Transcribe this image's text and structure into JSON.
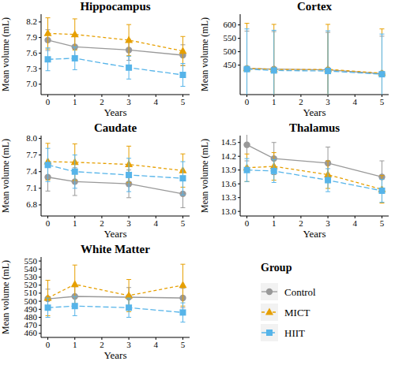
{
  "chart_data": [
    {
      "type": "line",
      "title": "Hippocampus",
      "x_label": "Years",
      "y_label": "Mean volume (mL)",
      "x": [
        0,
        1,
        3,
        5
      ],
      "xlim": [
        -0.25,
        5.25
      ],
      "xticks": [
        0,
        1,
        2,
        3,
        4,
        5
      ],
      "ylim": [
        6.8,
        8.35
      ],
      "yticks": [
        {
          "value": 7,
          "label": "7.0"
        },
        7.3,
        7.6,
        7.9,
        8.2
      ],
      "grid": false,
      "legend": "right",
      "legend_title": "Group",
      "series": [
        {
          "name": "Control",
          "color": "#999999",
          "marker": "circle",
          "line_style": "solid",
          "values": [
            7.85,
            7.72,
            7.66,
            7.56
          ],
          "errors": [
            0.2,
            0.2,
            0.2,
            0.2
          ]
        },
        {
          "name": "MICT",
          "color": "#E69F00",
          "marker": "triangle",
          "line_style": "dashed",
          "values": [
            7.98,
            7.96,
            7.85,
            7.64
          ],
          "errors": [
            0.3,
            0.3,
            0.3,
            0.28
          ]
        },
        {
          "name": "HIIT",
          "color": "#56B4E9",
          "marker": "square",
          "line_style": "longdash",
          "values": [
            7.48,
            7.5,
            7.32,
            7.18
          ],
          "errors": [
            0.22,
            0.22,
            0.22,
            0.22
          ]
        }
      ]
    },
    {
      "type": "line",
      "title": "Cortex",
      "x_label": "Years",
      "y_label": "Mean volume (mL)",
      "x": [
        0,
        1,
        3,
        5
      ],
      "xlim": [
        -0.25,
        5.25
      ],
      "xticks": [
        0,
        1,
        2,
        3,
        4,
        5
      ],
      "ylim": [
        340,
        640
      ],
      "yticks": [
        450,
        500,
        550,
        600
      ],
      "grid": false,
      "series": [
        {
          "name": "Control",
          "color": "#999999",
          "marker": "circle",
          "line_style": "solid",
          "values": [
            437,
            435,
            432,
            418
          ],
          "errors": [
            140,
            140,
            140,
            140
          ]
        },
        {
          "name": "MICT",
          "color": "#E69F00",
          "marker": "triangle",
          "line_style": "dashed",
          "values": [
            438,
            434,
            434,
            420
          ],
          "errors": [
            168,
            168,
            168,
            165
          ]
        },
        {
          "name": "HIIT",
          "color": "#56B4E9",
          "marker": "square",
          "line_style": "longdash",
          "values": [
            435,
            430,
            428,
            416
          ],
          "errors": [
            150,
            150,
            150,
            150
          ]
        }
      ]
    },
    {
      "type": "line",
      "title": "Caudate",
      "x_label": "Years",
      "y_label": "Mean volume (mL)",
      "x": [
        0,
        1,
        3,
        5
      ],
      "xlim": [
        -0.25,
        5.25
      ],
      "xticks": [
        0,
        1,
        2,
        3,
        4,
        5
      ],
      "ylim": [
        6.6,
        8.05
      ],
      "yticks": [
        6.8,
        7.1,
        7.4,
        7.7,
        {
          "value": 8,
          "label": "8.0"
        }
      ],
      "grid": false,
      "series": [
        {
          "name": "Control",
          "color": "#999999",
          "marker": "circle",
          "line_style": "solid",
          "values": [
            7.3,
            7.22,
            7.18,
            7.0
          ],
          "errors": [
            0.25,
            0.25,
            0.25,
            0.25
          ]
        },
        {
          "name": "MICT",
          "color": "#E69F00",
          "marker": "triangle",
          "line_style": "dashed",
          "values": [
            7.58,
            7.57,
            7.53,
            7.42
          ],
          "errors": [
            0.33,
            0.33,
            0.33,
            0.3
          ]
        },
        {
          "name": "HIIT",
          "color": "#56B4E9",
          "marker": "square",
          "line_style": "longdash",
          "values": [
            7.52,
            7.4,
            7.34,
            7.28
          ],
          "errors": [
            0.3,
            0.3,
            0.3,
            0.3
          ]
        }
      ]
    },
    {
      "type": "line",
      "title": "Thalamus",
      "x_label": "Years",
      "y_label": "Mean volume (mL)",
      "x": [
        0,
        1,
        3,
        5
      ],
      "xlim": [
        -0.25,
        5.25
      ],
      "xticks": [
        0,
        1,
        2,
        3,
        4,
        5
      ],
      "ylim": [
        12.9,
        14.65
      ],
      "yticks": [
        {
          "value": 13,
          "label": "13.0"
        },
        13.3,
        13.6,
        13.9,
        14.2,
        14.5
      ],
      "grid": false,
      "series": [
        {
          "name": "Control",
          "color": "#999999",
          "marker": "circle",
          "line_style": "solid",
          "values": [
            14.45,
            14.15,
            14.05,
            13.75
          ],
          "errors": [
            0.35,
            0.35,
            0.35,
            0.35
          ]
        },
        {
          "name": "MICT",
          "color": "#E69F00",
          "marker": "triangle",
          "line_style": "dashed",
          "values": [
            13.95,
            13.98,
            13.8,
            13.48
          ],
          "errors": [
            0.3,
            0.3,
            0.3,
            0.3
          ]
        },
        {
          "name": "HIIT",
          "color": "#56B4E9",
          "marker": "square",
          "line_style": "longdash",
          "values": [
            13.9,
            13.88,
            13.68,
            13.45
          ],
          "errors": [
            0.25,
            0.25,
            0.25,
            0.25
          ]
        }
      ]
    },
    {
      "type": "line",
      "title": "White Matter",
      "x_label": "Years",
      "y_label": "Mean volume (mL)",
      "x": [
        0,
        1,
        3,
        5
      ],
      "xlim": [
        -0.25,
        5.25
      ],
      "xticks": [
        0,
        1,
        2,
        3,
        4,
        5
      ],
      "ylim": [
        455,
        555
      ],
      "yticks": [
        460,
        470,
        480,
        490,
        500,
        510,
        520,
        530,
        540,
        550
      ],
      "grid": false,
      "series": [
        {
          "name": "Control",
          "color": "#999999",
          "marker": "circle",
          "line_style": "solid",
          "values": [
            503,
            506,
            505,
            504
          ],
          "errors": [
            12,
            12,
            12,
            12
          ]
        },
        {
          "name": "MICT",
          "color": "#E69F00",
          "marker": "triangle",
          "line_style": "dashed",
          "values": [
            504,
            521,
            507,
            520
          ],
          "errors": [
            22,
            24,
            20,
            26
          ]
        },
        {
          "name": "HIIT",
          "color": "#56B4E9",
          "marker": "square",
          "line_style": "longdash",
          "values": [
            492,
            494,
            492,
            486
          ],
          "errors": [
            12,
            12,
            12,
            12
          ]
        }
      ]
    }
  ]
}
